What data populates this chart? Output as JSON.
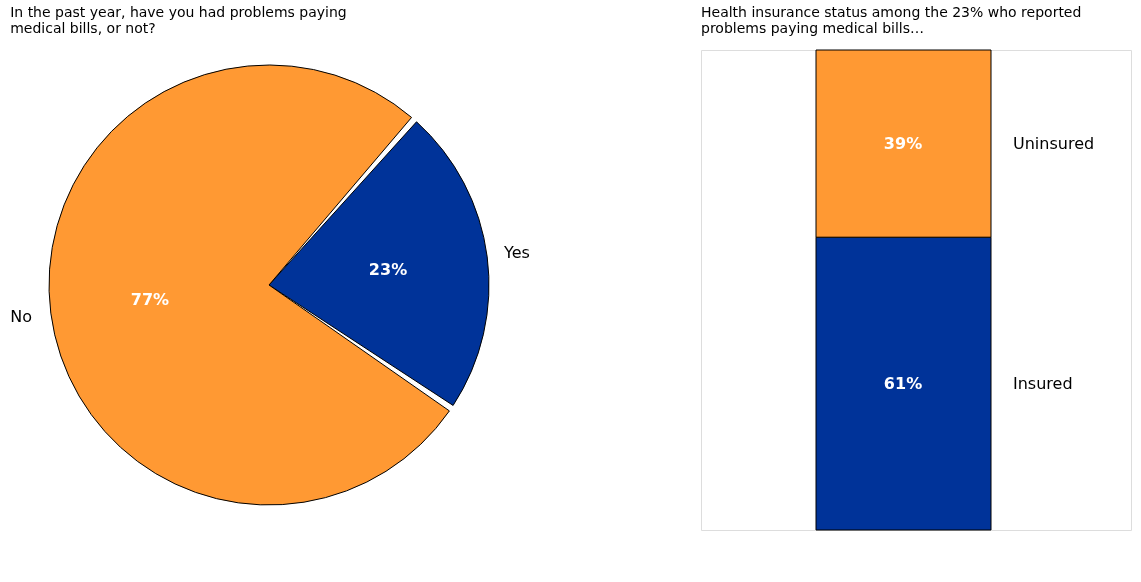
{
  "chart_data": [
    {
      "type": "pie",
      "title": "In the past year, have you had problems paying medical bills, or not?",
      "categories": [
        "Yes",
        "No"
      ],
      "values": [
        23,
        77
      ],
      "colors": [
        "#003399",
        "#ff9933"
      ],
      "value_labels": [
        "23%",
        "77%"
      ],
      "legend": false
    },
    {
      "type": "bar",
      "stacked": true,
      "title": "Health insurance status among the 23% who reported problems paying medical bills…",
      "categories": [
        null
      ],
      "series": [
        {
          "name": "Insured",
          "color": "#003399",
          "values": [
            61
          ],
          "value_labels": [
            "61%"
          ]
        },
        {
          "name": "Uninsured",
          "color": "#ff9933",
          "values": [
            39
          ],
          "value_labels": [
            "39%"
          ]
        }
      ],
      "legend": false
    }
  ]
}
